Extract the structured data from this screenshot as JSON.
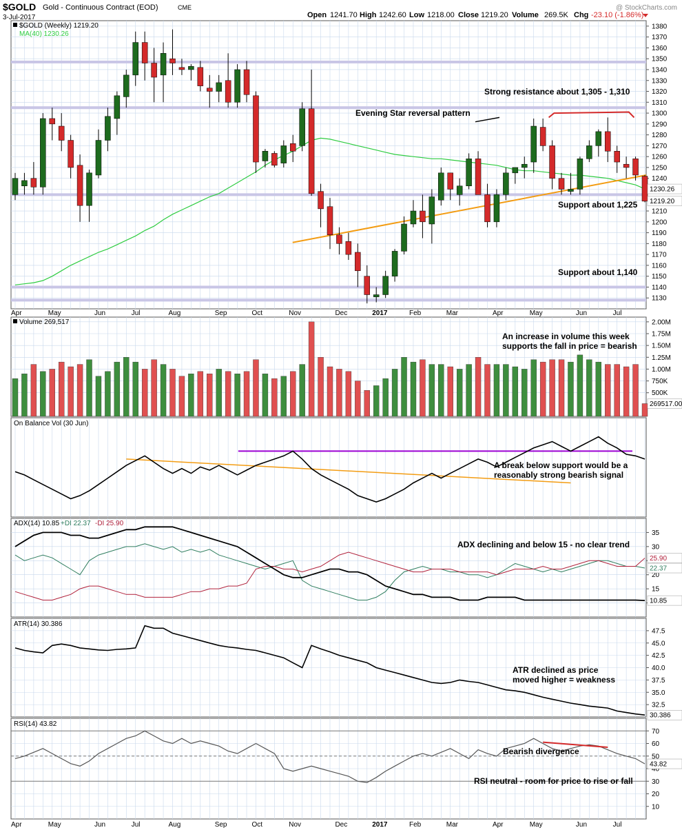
{
  "header": {
    "symbol": "$GOLD",
    "description": "Gold - Continuous Contract (EOD)",
    "exchange": "CME",
    "date": "3-Jul-2017",
    "open_label": "Open",
    "open": "1241.70",
    "high_label": "High",
    "high": "1242.60",
    "low_label": "Low",
    "low": "1218.00",
    "close_label": "Close",
    "close": "1219.20",
    "volume_label": "Volume",
    "volume": "269.5K",
    "chg_label": "Chg",
    "chg": "-23.10 (-1.86%)",
    "copyright": "@ StockCharts.com"
  },
  "colors": {
    "up": "#1e6b1e",
    "down": "#d42a2a",
    "vol_up": "#3e8e3e",
    "vol_down": "#e05050",
    "ma": "#2ecc40",
    "trend_orange": "#f39c12",
    "support_band": "#c9c6e6",
    "obv_support": "#9b00d3",
    "plus_di": "#2e7d5e",
    "minus_di": "#b0203a",
    "grid": "#c8d8ec",
    "label_tag": "#d8d8d8"
  },
  "chart_data": [
    {
      "type": "candlestick",
      "legend": [
        "$GOLD (Weekly) 1219.20",
        "MA(40) 1230.26"
      ],
      "ylim": [
        1120,
        1385
      ],
      "yticks": [
        1130,
        1140,
        1150,
        1160,
        1170,
        1180,
        1190,
        1200,
        1210,
        1220,
        1230,
        1240,
        1250,
        1260,
        1270,
        1280,
        1290,
        1300,
        1310,
        1320,
        1330,
        1340,
        1350,
        1360,
        1370,
        1380
      ],
      "last_price_tag": "1219.20",
      "ma_tag": "1230.26",
      "x_labels": [
        "Apr",
        "May",
        "Jun",
        "Jul",
        "Aug",
        "Sep",
        "Oct",
        "Nov",
        "Dec",
        "2017",
        "Feb",
        "Mar",
        "Apr",
        "May",
        "Jun",
        "Jul"
      ],
      "x_label_weeks": [
        0,
        4,
        9,
        13,
        17,
        22,
        26,
        30,
        35,
        39,
        43,
        47,
        52,
        56,
        61,
        65
      ],
      "candles": [
        [
          1225,
          1245,
          1220,
          1240
        ],
        [
          1233,
          1245,
          1225,
          1238
        ],
        [
          1240,
          1255,
          1225,
          1232
        ],
        [
          1232,
          1300,
          1225,
          1295
        ],
        [
          1295,
          1305,
          1275,
          1290
        ],
        [
          1288,
          1300,
          1265,
          1275
        ],
        [
          1275,
          1280,
          1240,
          1250
        ],
        [
          1252,
          1262,
          1200,
          1215
        ],
        [
          1215,
          1248,
          1200,
          1245
        ],
        [
          1243,
          1285,
          1240,
          1275
        ],
        [
          1275,
          1305,
          1265,
          1297
        ],
        [
          1295,
          1320,
          1280,
          1316
        ],
        [
          1315,
          1340,
          1305,
          1335
        ],
        [
          1335,
          1375,
          1325,
          1365
        ],
        [
          1365,
          1375,
          1330,
          1346
        ],
        [
          1346,
          1360,
          1310,
          1333
        ],
        [
          1335,
          1365,
          1310,
          1355
        ],
        [
          1350,
          1377,
          1335,
          1346
        ],
        [
          1342,
          1350,
          1335,
          1340
        ],
        [
          1340,
          1345,
          1330,
          1343
        ],
        [
          1342,
          1348,
          1320,
          1325
        ],
        [
          1323,
          1335,
          1305,
          1320
        ],
        [
          1320,
          1335,
          1310,
          1328
        ],
        [
          1330,
          1355,
          1305,
          1310
        ],
        [
          1310,
          1345,
          1305,
          1340
        ],
        [
          1340,
          1348,
          1310,
          1317
        ],
        [
          1316,
          1320,
          1245,
          1255
        ],
        [
          1256,
          1267,
          1250,
          1265
        ],
        [
          1263,
          1265,
          1250,
          1252
        ],
        [
          1254,
          1275,
          1250,
          1270
        ],
        [
          1272,
          1280,
          1255,
          1265
        ],
        [
          1270,
          1310,
          1265,
          1304
        ],
        [
          1304,
          1340,
          1224,
          1226
        ],
        [
          1228,
          1235,
          1195,
          1212
        ],
        [
          1214,
          1222,
          1175,
          1188
        ],
        [
          1188,
          1195,
          1170,
          1180
        ],
        [
          1182,
          1190,
          1165,
          1170
        ],
        [
          1172,
          1180,
          1140,
          1155
        ],
        [
          1150,
          1160,
          1125,
          1133
        ],
        [
          1131,
          1140,
          1126,
          1133
        ],
        [
          1133,
          1155,
          1130,
          1150
        ],
        [
          1150,
          1175,
          1145,
          1173
        ],
        [
          1173,
          1205,
          1170,
          1198
        ],
        [
          1198,
          1220,
          1195,
          1210
        ],
        [
          1210,
          1225,
          1185,
          1200
        ],
        [
          1198,
          1230,
          1180,
          1223
        ],
        [
          1220,
          1250,
          1215,
          1245
        ],
        [
          1245,
          1245,
          1220,
          1230
        ],
        [
          1225,
          1240,
          1215,
          1233
        ],
        [
          1233,
          1263,
          1230,
          1258
        ],
        [
          1258,
          1265,
          1225,
          1225
        ],
        [
          1225,
          1235,
          1195,
          1200
        ],
        [
          1200,
          1230,
          1195,
          1225
        ],
        [
          1225,
          1250,
          1220,
          1245
        ],
        [
          1245,
          1250,
          1235,
          1250
        ],
        [
          1250,
          1260,
          1240,
          1253
        ],
        [
          1255,
          1295,
          1245,
          1288
        ],
        [
          1287,
          1295,
          1265,
          1270
        ],
        [
          1270,
          1275,
          1230,
          1240
        ],
        [
          1240,
          1245,
          1225,
          1230
        ],
        [
          1228,
          1245,
          1225,
          1230
        ],
        [
          1230,
          1260,
          1225,
          1258
        ],
        [
          1258,
          1275,
          1255,
          1270
        ],
        [
          1270,
          1285,
          1260,
          1283
        ],
        [
          1283,
          1296,
          1255,
          1265
        ],
        [
          1265,
          1270,
          1245,
          1255
        ],
        [
          1253,
          1260,
          1240,
          1250
        ],
        [
          1258,
          1260,
          1238,
          1243
        ],
        [
          1242,
          1243,
          1218,
          1219
        ]
      ],
      "ma": [
        1142,
        1143,
        1144,
        1146,
        1150,
        1155,
        1160,
        1164,
        1168,
        1172,
        1175,
        1179,
        1183,
        1187,
        1192,
        1196,
        1202,
        1207,
        1211,
        1215,
        1219,
        1223,
        1226,
        1231,
        1236,
        1241,
        1246,
        1252,
        1257,
        1261,
        1265,
        1270,
        1275,
        1277,
        1276,
        1274,
        1272,
        1270,
        1268,
        1266,
        1264,
        1262,
        1261,
        1260,
        1259,
        1258,
        1258,
        1257,
        1256,
        1255,
        1254,
        1253,
        1252,
        1250,
        1248,
        1247,
        1247,
        1246,
        1245,
        1244,
        1243,
        1243,
        1242,
        1241,
        1240,
        1238,
        1236,
        1234,
        1230.26
      ],
      "support_lines": [
        1347,
        1305,
        1225,
        1140,
        1128
      ],
      "trendline": [
        [
          52,
          1181
        ],
        [
          118,
          1243
        ]
      ],
      "resistance_marker": [
        [
          100,
          1296
        ],
        [
          101,
          1300
        ],
        [
          115,
          1301
        ],
        [
          116,
          1296
        ]
      ],
      "annotations": [
        "Strong resistance about 1,305 - 1,310",
        "Evening Star reversal pattern",
        "Support about 1,225",
        "Support about 1,140"
      ]
    },
    {
      "type": "bar",
      "legend_title": "Volume",
      "legend_value": "269,517",
      "ylim": [
        0,
        2.1
      ],
      "yticks": [
        0.5,
        0.75,
        1.0,
        1.25,
        1.5,
        1.75,
        2.0
      ],
      "ytick_labels": [
        "500K",
        "750K",
        "1.00M",
        "1.25M",
        "1.50M",
        "1.75M",
        "2.00M"
      ],
      "last_value_tag": "269517.00",
      "values_millions": [
        0.8,
        0.9,
        1.1,
        0.95,
        1.0,
        1.15,
        1.05,
        1.1,
        1.2,
        0.85,
        0.95,
        1.15,
        1.25,
        1.15,
        1.0,
        1.2,
        1.1,
        1.0,
        0.85,
        0.9,
        0.95,
        0.9,
        1.0,
        0.95,
        0.9,
        0.95,
        1.2,
        0.9,
        0.8,
        0.85,
        0.95,
        1.1,
        2.0,
        1.25,
        1.05,
        1.0,
        0.95,
        0.75,
        0.55,
        0.65,
        0.8,
        1.0,
        1.25,
        1.15,
        1.2,
        1.1,
        1.1,
        1.05,
        1.0,
        1.1,
        1.25,
        1.1,
        1.1,
        1.1,
        1.05,
        1.0,
        1.2,
        1.15,
        1.2,
        1.2,
        1.15,
        1.3,
        1.2,
        1.15,
        1.1,
        1.1,
        1.05,
        1.1,
        0.27
      ],
      "annotations": [
        "An increase in volume this week",
        "supports the fall in price = bearish"
      ]
    },
    {
      "type": "line",
      "legend": "On Balance Vol (30 Jun)",
      "ylim": [
        0,
        100
      ],
      "values": [
        62,
        58,
        52,
        46,
        40,
        34,
        28,
        32,
        38,
        46,
        54,
        62,
        70,
        76,
        82,
        74,
        66,
        60,
        66,
        60,
        68,
        64,
        70,
        64,
        58,
        64,
        70,
        74,
        78,
        82,
        88,
        78,
        66,
        58,
        52,
        46,
        40,
        32,
        28,
        24,
        28,
        34,
        40,
        48,
        54,
        60,
        54,
        60,
        66,
        72,
        78,
        74,
        68,
        74,
        80,
        86,
        92,
        96,
        100,
        94,
        88,
        94,
        100,
        106,
        98,
        92,
        84,
        82,
        78
      ],
      "obv_support": [
        [
          36,
          88
        ],
        [
          118,
          88
        ]
      ],
      "orange_trend": [
        [
          40,
          78
        ],
        [
          104,
          48
        ]
      ],
      "annotations": [
        "A break below support would be a",
        "reasonably strong bearish signal"
      ]
    },
    {
      "type": "line",
      "legend_main": "ADX(14) 10.85",
      "legend_plus": "+DI 22.37",
      "legend_minus": "-DI 25.90",
      "ylim": [
        5,
        40
      ],
      "yticks": [
        10,
        15,
        20,
        25,
        30,
        35
      ],
      "tags": {
        "minus": "25.90",
        "plus": "22.37",
        "adx": "10.85"
      },
      "adx": [
        30,
        32,
        34,
        35,
        35,
        35,
        34,
        34,
        33,
        33,
        34,
        35,
        36,
        36,
        37,
        37,
        37,
        37,
        36,
        35,
        34,
        33,
        32,
        31,
        30,
        28,
        26,
        24,
        22,
        20,
        19,
        19,
        20,
        21,
        22,
        22,
        21,
        21,
        20,
        18,
        16,
        15,
        14,
        13,
        13,
        12,
        12,
        12,
        11,
        11,
        11,
        12,
        12,
        12,
        12,
        11,
        11,
        11,
        11,
        11,
        11,
        11,
        11,
        11,
        11,
        11,
        11,
        11,
        10.85
      ],
      "plus_di": [
        27,
        25,
        26,
        27,
        26,
        24,
        22,
        20,
        25,
        27,
        28,
        29,
        30,
        30,
        31,
        30,
        29,
        30,
        28,
        29,
        28,
        29,
        27,
        26,
        25,
        24,
        23,
        22,
        23,
        24,
        25,
        18,
        16,
        15,
        14,
        13,
        12,
        11,
        11,
        12,
        14,
        18,
        21,
        22,
        23,
        22,
        22,
        21,
        21,
        20,
        20,
        19,
        20,
        22,
        24,
        23,
        22,
        21,
        22,
        21,
        22,
        23,
        24,
        25,
        25,
        24,
        23,
        23,
        22.37
      ],
      "minus_di": [
        14,
        13,
        12,
        11,
        11,
        12,
        13,
        15,
        16,
        16,
        15,
        14,
        13,
        13,
        12,
        12,
        12,
        12,
        13,
        14,
        14,
        15,
        15,
        16,
        16,
        17,
        22,
        23,
        23,
        22,
        22,
        21,
        22,
        23,
        25,
        27,
        28,
        27,
        26,
        25,
        24,
        23,
        22,
        21,
        21,
        22,
        22,
        22,
        21,
        21,
        21,
        21,
        20,
        21,
        22,
        22,
        22,
        23,
        22,
        22,
        23,
        24,
        25,
        25,
        24,
        23,
        23,
        23,
        25.9
      ],
      "annotations": [
        "ADX declining and below 15 - no clear trend"
      ]
    },
    {
      "type": "line",
      "legend": "ATR(14) 30.386",
      "ylim": [
        30,
        50
      ],
      "yticks": [
        32.5,
        35.0,
        37.5,
        40.0,
        42.5,
        45.0,
        47.5
      ],
      "last_value_tag": "30.386",
      "values": [
        44,
        43.5,
        43.2,
        43,
        44.5,
        44.8,
        44.5,
        44,
        43.8,
        43.6,
        43.5,
        43.7,
        43.8,
        44,
        48.5,
        48,
        48,
        47,
        46.5,
        46,
        45.5,
        45,
        44.5,
        44.2,
        44,
        43.7,
        43.5,
        43,
        42.5,
        42,
        41,
        40,
        44.5,
        43.8,
        43.2,
        42.5,
        42,
        41.5,
        41,
        40,
        39.5,
        39,
        38.5,
        38,
        37.5,
        37,
        36.8,
        37,
        37.5,
        37.2,
        37,
        36.5,
        36,
        35.5,
        35.3,
        35,
        34.5,
        34,
        33.6,
        33.2,
        32.8,
        32.5,
        32.2,
        32,
        31.8,
        31.2,
        30.9,
        30.6,
        30.386
      ],
      "annotations": [
        "ATR declined as price",
        "moved higher = weakness"
      ]
    },
    {
      "type": "line",
      "legend": "RSI(14) 43.82",
      "ylim": [
        0,
        80
      ],
      "yticks": [
        10,
        20,
        30,
        40,
        50,
        60,
        70
      ],
      "reference_levels": [
        70,
        50,
        30
      ],
      "last_value_tag": "43.82",
      "values": [
        48,
        50,
        53,
        56,
        52,
        48,
        44,
        42,
        46,
        52,
        56,
        60,
        64,
        66,
        70,
        66,
        62,
        60,
        64,
        60,
        62,
        60,
        58,
        54,
        52,
        56,
        60,
        56,
        52,
        40,
        38,
        40,
        42,
        40,
        38,
        36,
        34,
        30,
        29,
        33,
        38,
        42,
        46,
        50,
        52,
        50,
        53,
        56,
        52,
        48,
        55,
        52,
        50,
        56,
        58,
        60,
        64,
        60,
        56,
        54,
        56,
        58,
        59,
        58,
        55,
        52,
        50,
        48,
        43.82
      ],
      "divergence_line": [
        [
          99,
          63
        ],
        [
          120,
          58
        ]
      ],
      "annotations": [
        "Bearish divergence",
        "RSI neutral - room for price to rise or fall"
      ]
    }
  ]
}
